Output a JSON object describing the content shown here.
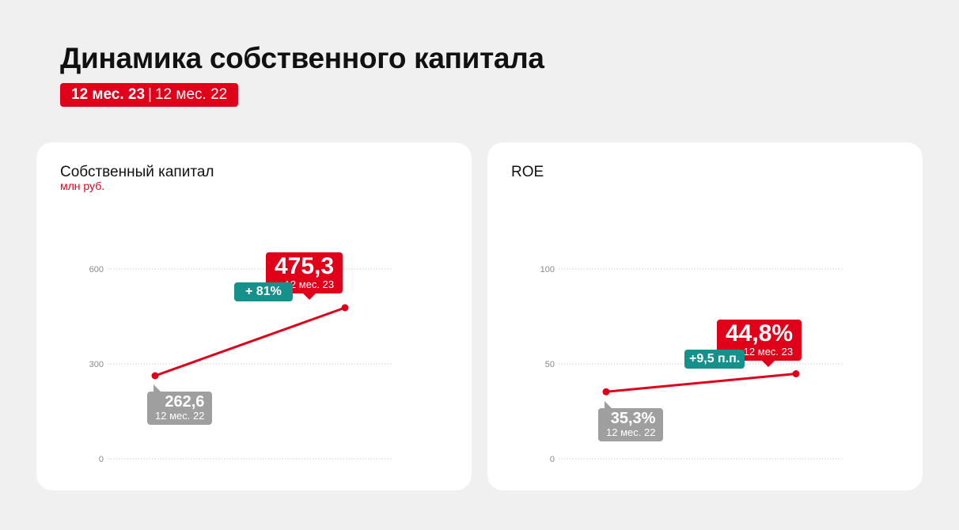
{
  "header": {
    "title": "Динамика собственного капитала",
    "period_current": "12 мес. 23",
    "period_separator": "|",
    "period_previous": "12 мес. 22"
  },
  "colors": {
    "accent": "#e0001a",
    "change": "#16908a",
    "previous": "#9f9f9f",
    "background": "#f0f0f0",
    "card": "#ffffff"
  },
  "cards": [
    {
      "title": "Собственный капитал",
      "unit": "млн руб.",
      "ticks": [
        "0",
        "300",
        "600"
      ],
      "change": "+ 81%",
      "current": {
        "value": "475,3",
        "period": "12 мес. 23"
      },
      "previous": {
        "value": "262,6",
        "period": "12 мес. 22"
      }
    },
    {
      "title": "ROE",
      "unit": "",
      "ticks": [
        "0",
        "50",
        "100"
      ],
      "change": "+9,5 п.п.",
      "current": {
        "value": "44,8%",
        "period": "12 мес. 23"
      },
      "previous": {
        "value": "35,3%",
        "period": "12 мес. 22"
      }
    }
  ],
  "chart_data": [
    {
      "type": "line",
      "title": "Собственный капитал",
      "ylabel": "млн руб.",
      "x": [
        "12 мес. 22",
        "12 мес. 23"
      ],
      "values": [
        262.6,
        475.3
      ],
      "ylim": [
        0,
        600
      ],
      "yticks": [
        0,
        300,
        600
      ],
      "grid": true
    },
    {
      "type": "line",
      "title": "ROE",
      "x": [
        "12 мес. 22",
        "12 мес. 23"
      ],
      "values": [
        35.3,
        44.8
      ],
      "ylim": [
        0,
        100
      ],
      "yticks": [
        0,
        50,
        100
      ],
      "grid": true
    }
  ]
}
